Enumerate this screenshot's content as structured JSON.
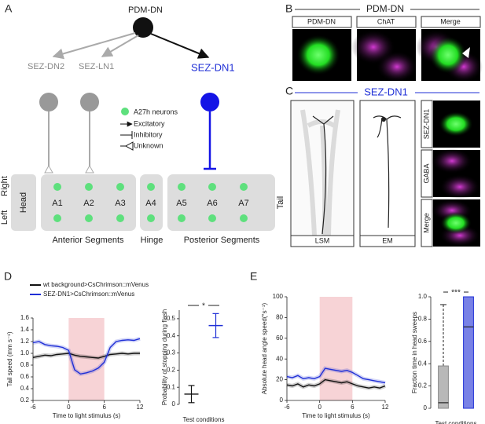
{
  "panel_a": {
    "letter": "A",
    "nodes": [
      "PDM-DN",
      "SEZ-DN2",
      "SEZ-LN1",
      "SEZ-DN1"
    ],
    "legend": [
      "A27h neurons",
      "Excitatory",
      "Inhibitory",
      "Unknown"
    ],
    "sides": [
      "Right",
      "Left",
      "Tail"
    ],
    "head": "Head",
    "segments": [
      "A1",
      "A2",
      "A3",
      "A4",
      "A5",
      "A6",
      "A7"
    ],
    "groups": [
      "Anterior Segments",
      "Hinge",
      "Posterior Segments"
    ]
  },
  "panel_b": {
    "letter": "B",
    "title": "PDM-DN",
    "columns": [
      "PDM-DN",
      "ChAT",
      "Merge"
    ]
  },
  "panel_c": {
    "letter": "C",
    "title": "SEZ-DN1",
    "images": [
      "LSM",
      "EM"
    ],
    "rows": [
      "SEZ-DN1",
      "GABA",
      "Merge"
    ]
  },
  "panel_d": {
    "letter": "D"
  },
  "panel_e": {
    "letter": "E"
  },
  "chart_data": [
    {
      "type": "line",
      "xlabel": "Time to light stimulus (s)",
      "ylabel": "Tail speed (mm s⁻¹)",
      "x": [
        -6,
        -5,
        -4,
        -3,
        -2,
        -1,
        0,
        1,
        2,
        3,
        4,
        5,
        6,
        7,
        8,
        9,
        10,
        11,
        12
      ],
      "series": [
        {
          "name": "wt background>CsChrimson::mVenus",
          "color": "#111111",
          "values": [
            0.93,
            0.95,
            0.97,
            0.96,
            0.98,
            0.99,
            1.0,
            0.97,
            0.95,
            0.94,
            0.93,
            0.92,
            0.95,
            0.98,
            0.99,
            1.0,
            0.99,
            1.0,
            1.0
          ]
        },
        {
          "name": "SEZ-DN1>CsChrimson::mVenus",
          "color": "#1f2fd6",
          "values": [
            1.18,
            1.2,
            1.15,
            1.13,
            1.12,
            1.1,
            1.05,
            0.72,
            0.65,
            0.67,
            0.7,
            0.75,
            0.85,
            1.1,
            1.2,
            1.22,
            1.23,
            1.22,
            1.25
          ]
        }
      ],
      "shaded_region": {
        "x": [
          0,
          6
        ],
        "color": "#f7d3d6"
      },
      "xlim": [
        -6,
        12
      ],
      "xticks": [
        -6,
        0,
        6,
        12
      ],
      "ylim": [
        0.2,
        1.6
      ],
      "yticks": [
        0.2,
        0.4,
        0.6,
        0.8,
        {
          "value": 1,
          "label": "1.0"
        },
        1.2,
        1.4,
        1.6
      ]
    },
    {
      "type": "errorbar",
      "ylabel": "Probability of stopping during flash",
      "xlabel": "Test conditions",
      "annotation": "*",
      "categories": [
        null,
        null
      ],
      "values": [
        0.06,
        0.46
      ],
      "errors": [
        0.05,
        0.07
      ],
      "colors": [
        "#111111",
        "#1f2fd6"
      ],
      "ylim": [
        0,
        0.55
      ],
      "yticks": [
        0,
        0.1,
        0.2,
        0.3,
        0.4,
        0.5
      ]
    },
    {
      "type": "line",
      "xlabel": "Time to light stimulus (s)",
      "ylabel": "Absolute head angle speed(°s⁻¹)",
      "x": [
        -6,
        -5,
        -4,
        -3,
        -2,
        -1,
        0,
        1,
        2,
        3,
        4,
        5,
        6,
        7,
        8,
        9,
        10,
        11,
        12
      ],
      "series": [
        {
          "name": "wt background>CsChrimson::mVenus",
          "color": "#111111",
          "values": [
            15,
            14,
            16,
            13,
            15,
            14,
            16,
            20,
            19,
            18,
            17,
            18,
            16,
            14,
            13,
            12,
            13,
            12,
            14
          ]
        },
        {
          "name": "SEZ-DN1>CsChrimson::mVenus",
          "color": "#1f2fd6",
          "values": [
            23,
            22,
            24,
            21,
            22,
            21,
            23,
            31,
            30,
            29,
            28,
            29,
            27,
            24,
            21,
            20,
            19,
            18,
            17
          ]
        }
      ],
      "shaded_region": {
        "x": [
          0,
          6
        ],
        "color": "#f7d3d6"
      },
      "xlim": [
        -6,
        12
      ],
      "xticks": [
        -6,
        0,
        6,
        12
      ],
      "ylim": [
        0,
        100
      ],
      "yticks": [
        0,
        20,
        40,
        60,
        80,
        100
      ]
    },
    {
      "type": "box",
      "ylabel": "Fraction time in head sweeps",
      "xlabel": "Test conditions",
      "annotation": "***",
      "categories": [
        null,
        null
      ],
      "colors": [
        "#888888",
        "#1f2fd6"
      ],
      "boxes": [
        {
          "min": 0,
          "q1": 0,
          "median": 0.05,
          "q3": 0.38,
          "max": 0.93
        },
        {
          "min": 0,
          "q1": 0,
          "median": 0.73,
          "q3": 1.0,
          "max": 1.0
        }
      ],
      "ylim": [
        0,
        1.0
      ],
      "yticks": [
        0,
        0.2,
        0.4,
        0.6,
        0.8,
        {
          "value": 1,
          "label": "1.0"
        }
      ]
    }
  ]
}
